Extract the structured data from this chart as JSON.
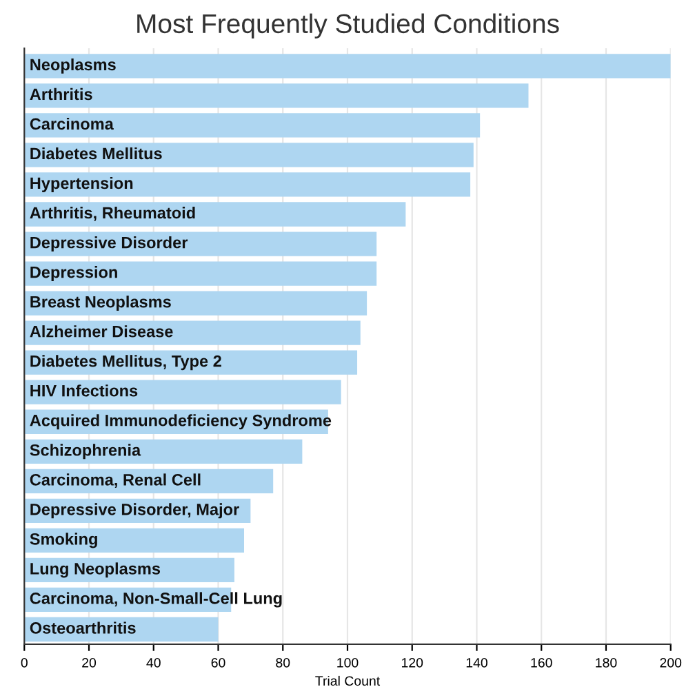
{
  "chart_data": {
    "type": "bar",
    "orientation": "horizontal",
    "title": "Most Frequently Studied Conditions",
    "xlabel": "Trial Count",
    "categories": [
      "Neoplasms",
      "Arthritis",
      "Carcinoma",
      "Diabetes Mellitus",
      "Hypertension",
      "Arthritis, Rheumatoid",
      "Depressive Disorder",
      "Depression",
      "Breast Neoplasms",
      "Alzheimer Disease",
      "Diabetes Mellitus, Type 2",
      "HIV Infections",
      "Acquired Immunodeficiency Syndrome",
      "Schizophrenia",
      "Carcinoma, Renal Cell",
      "Depressive Disorder, Major",
      "Smoking",
      "Lung Neoplasms",
      "Carcinoma, Non-Small-Cell Lung",
      "Osteoarthritis"
    ],
    "values": [
      200,
      156,
      141,
      139,
      138,
      118,
      109,
      109,
      106,
      104,
      103,
      98,
      94,
      86,
      77,
      70,
      68,
      65,
      64,
      60
    ],
    "color": "#aed6f1",
    "xlim": [
      0,
      200
    ],
    "xticks": [
      0,
      20,
      40,
      60,
      80,
      100,
      120,
      140,
      160,
      180,
      200
    ],
    "grid": "x"
  }
}
